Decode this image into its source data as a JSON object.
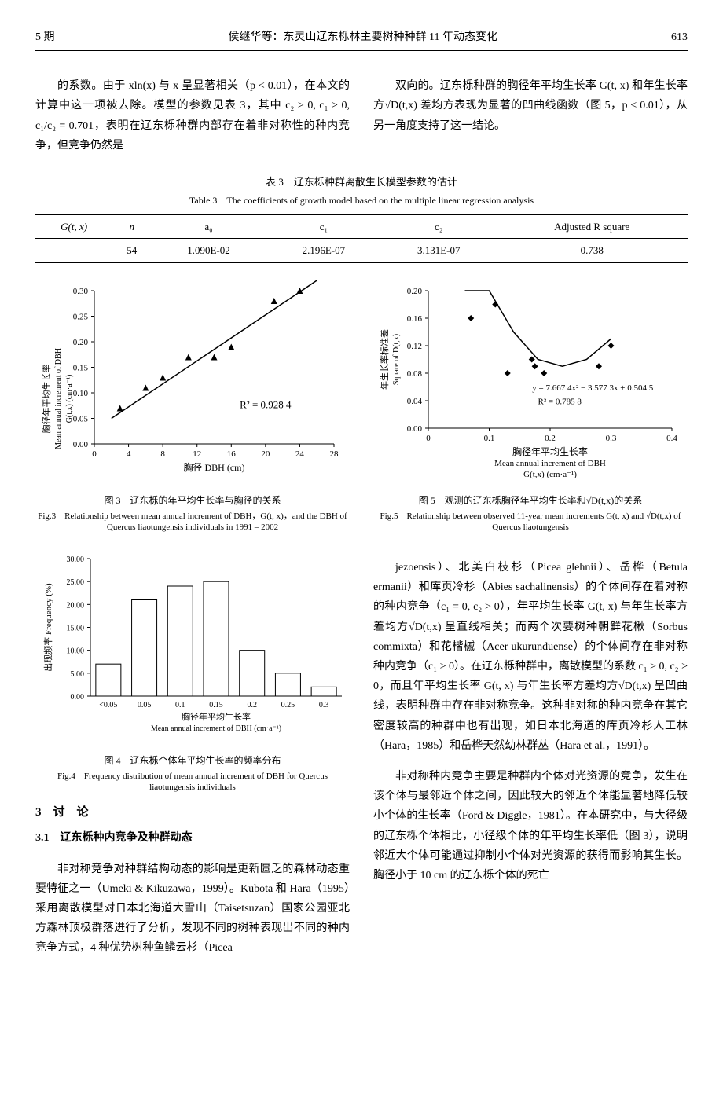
{
  "hdr": {
    "issue": "5 期",
    "title": "侯继华等：东灵山辽东栎林主要树种种群 11 年动态变化",
    "page": "613"
  },
  "p1": "的系数。由于 xln(x) 与 x 呈显著相关（p < 0.01），在本文的计算中这一项被去除。模型的参数见表 3，其中 c₂ > 0, c₁ > 0, c₁/c₂ = 0.701，表明在辽东栎种群内部存在着非对称性的种内竞争，但竞争仍然是",
  "p1b": "双向的。辽东栎种群的胸径年平均生长率 G(t, x) 和年生长率方√D(t,x) 差均方表现为显著的凹曲线函数（图 5，p < 0.01），从另一角度支持了这一结论。",
  "t3": {
    "cap": "表 3　辽东栎种群离散生长模型参数的估计",
    "capen": "Table 3　The coefficients of growth model based on the multiple linear regression analysis",
    "h": [
      "G(t, x)",
      "n",
      "a₀",
      "c₁",
      "c₂",
      "Adjusted R square"
    ],
    "r": [
      "",
      "54",
      "1.090E-02",
      "2.196E-07",
      "3.131E-07",
      "0.738"
    ]
  },
  "f3": {
    "cap": "图 3　辽东栎的年平均生长率与胸径的关系",
    "capen": "Fig.3　Relationship between mean annual increment of DBH，G(t, x)，and the DBH of Quercus liaotungensis individuals in 1991 – 2002",
    "ylabel": "胸径年平均生长率",
    "ylabel2": "Mean annual increment of DBH",
    "yunit": "G(t,x) (cm·a⁻¹)",
    "xlabel": "胸径 DBH (cm)",
    "r2": "R² = 0.928 4",
    "xlim": [
      0,
      28
    ],
    "ylim": [
      0,
      0.3
    ],
    "xticks": [
      0,
      4,
      8,
      12,
      16,
      20,
      24,
      28
    ],
    "yticks": [
      0.0,
      0.05,
      0.1,
      0.15,
      0.2,
      0.25,
      0.3
    ],
    "points": [
      [
        3,
        0.07
      ],
      [
        6,
        0.11
      ],
      [
        8,
        0.13
      ],
      [
        11,
        0.17
      ],
      [
        14,
        0.17
      ],
      [
        16,
        0.19
      ],
      [
        21,
        0.28
      ],
      [
        24,
        0.3
      ]
    ],
    "line": [
      [
        2,
        0.05
      ],
      [
        26,
        0.32
      ]
    ],
    "marker_color": "#000",
    "line_color": "#000"
  },
  "f4": {
    "cap": "图 4　辽东栎个体年平均生长率的频率分布",
    "capen": "Fig.4　Frequency distribution of mean annual increment of DBH for Quercus liaotungensis individuals",
    "ylabel": "出现频率 Frequency (%)",
    "xlabel": "胸径年平均生长率",
    "xlabel2": "Mean annual increment of DBH (cm·a⁻¹)",
    "ylim": [
      0,
      30
    ],
    "yticks": [
      0.0,
      5.0,
      10.0,
      15.0,
      20.0,
      25.0,
      30.0
    ],
    "cats": [
      "<0.05",
      "0.05",
      "0.1",
      "0.15",
      "0.2",
      "0.25",
      "0.3"
    ],
    "vals": [
      7,
      21,
      24,
      25,
      10,
      5,
      2
    ],
    "bar_fill": "#fff",
    "bar_stroke": "#000"
  },
  "f5": {
    "cap": "图 5　观测的辽东栎胸径年平均生长率和√D(t,x)的关系",
    "capen": "Fig.5　Relationship between observed 11-year mean increments G(t, x) and √D(t,x) of Quercus liaotungensis",
    "ylabel": "年生长率标准差",
    "ylabel2": "Square of D(t,x)",
    "xlabel": "胸径年平均生长率",
    "xlabel2": "Mean annual increment of DBH",
    "xunit": "G(t,x) (cm·a⁻¹)",
    "eq": "y = 7.667 4x² − 3.577 3x + 0.504 5",
    "r2": "R² = 0.785 8",
    "xlim": [
      0,
      0.4
    ],
    "ylim": [
      0,
      0.2
    ],
    "xticks": [
      0,
      0.1,
      0.2,
      0.3,
      0.4
    ],
    "yticks": [
      0.0,
      0.04,
      0.08,
      0.12,
      0.16,
      0.2
    ],
    "points": [
      [
        0.07,
        0.16
      ],
      [
        0.11,
        0.18
      ],
      [
        0.13,
        0.08
      ],
      [
        0.17,
        0.1
      ],
      [
        0.175,
        0.09
      ],
      [
        0.19,
        0.08
      ],
      [
        0.28,
        0.09
      ],
      [
        0.3,
        0.12
      ]
    ],
    "curve": [
      [
        0.06,
        0.32
      ],
      [
        0.1,
        0.21
      ],
      [
        0.14,
        0.14
      ],
      [
        0.18,
        0.1
      ],
      [
        0.22,
        0.09
      ],
      [
        0.26,
        0.1
      ],
      [
        0.3,
        0.13
      ]
    ],
    "marker_color": "#000",
    "line_color": "#000"
  },
  "body": {
    "p2": "jezoensis）、北美白枝杉（Picea glehnii）、岳桦（Betula ermanii）和库页冷杉（Abies sachalinensis）的个体间存在着对称的种内竞争（c₁ = 0, c₂ > 0），年平均生长率 G(t, x) 与年生长率方差均方√D(t,x) 呈直线相关；而两个次要树种朝鲜花楸（Sorbus commixta）和花楷槭（Acer ukurunduense）的个体间存在非对称种内竞争（c₁ > 0）。在辽东栎种群中，离散模型的系数 c₁ > 0, c₂ > 0，而且年平均生长率 G(t, x) 与年生长率方差均方√D(t,x) 呈凹曲线，表明种群中存在非对称竞争。这种非对称的种内竞争在其它密度较高的种群中也有出现，如日本北海道的库页冷杉人工林（Hara，1985）和岳桦天然幼林群丛（Hara et al.，1991）。",
    "p3": "非对称种内竞争主要是种群内个体对光资源的竞争，发生在该个体与最邻近个体之间，因此较大的邻近个体能显著地降低较小个体的生长率（Ford & Diggle，1981）。在本研究中，与大径级的辽东栎个体相比，小径级个体的年平均生长率低（图 3），说明邻近大个体可能通过抑制小个体对光资源的获得而影响其生长。胸径小于 10 cm 的辽东栎个体的死亡",
    "sec": "3　讨　论",
    "sub": "3.1　辽东栎种内竞争及种群动态",
    "p4": "非对称竞争对种群结构动态的影响是更新匮乏的森林动态重要特征之一（Umeki & Kikuzawa，1999）。Kubota 和 Hara（1995）采用离散模型对日本北海道大雪山（Taisetsuzan）国家公园亚北方森林顶极群落进行了分析，发现不同的树种表现出不同的种内竞争方式，4 种优势树种鱼鳞云杉（Picea"
  }
}
